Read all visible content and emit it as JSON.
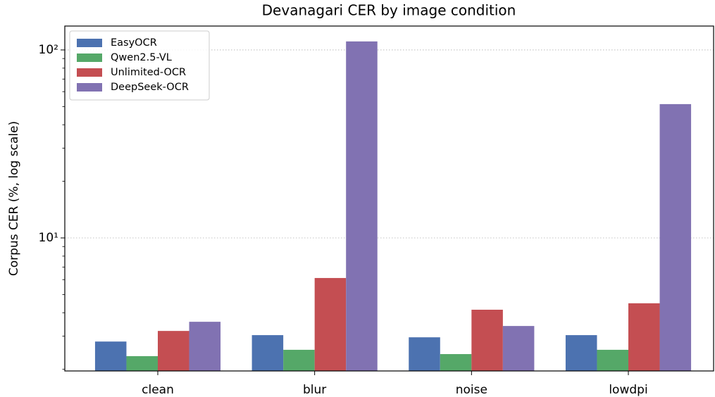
{
  "chart_data": {
    "type": "bar",
    "title": "Devanagari CER by image condition",
    "ylabel": "Corpus CER (%, log scale)",
    "categories": [
      "clean",
      "blur",
      "noise",
      "lowdpi"
    ],
    "series": [
      {
        "name": "EasyOCR",
        "color": "#4c72b0",
        "values": [
          2.81,
          3.04,
          2.96,
          3.04
        ]
      },
      {
        "name": "Qwen2.5-VL",
        "color": "#55a868",
        "values": [
          2.35,
          2.54,
          2.41,
          2.54
        ]
      },
      {
        "name": "Unlimited-OCR",
        "color": "#c44e52",
        "values": [
          3.2,
          6.12,
          4.15,
          4.49
        ]
      },
      {
        "name": "DeepSeek-OCR",
        "color": "#8172b2",
        "values": [
          3.58,
          111,
          3.4,
          51.5
        ]
      }
    ],
    "log_scale": true,
    "ylim": [
      1.96,
      134
    ],
    "yticks": [
      {
        "value": 10,
        "label": "10¹"
      },
      {
        "value": 100,
        "label": "10²"
      }
    ],
    "minor_yticks": [
      2,
      3,
      4,
      5,
      6,
      7,
      8,
      9,
      20,
      30,
      40,
      50,
      60,
      70,
      80,
      90
    ],
    "grid": true,
    "legend": "upper left"
  }
}
